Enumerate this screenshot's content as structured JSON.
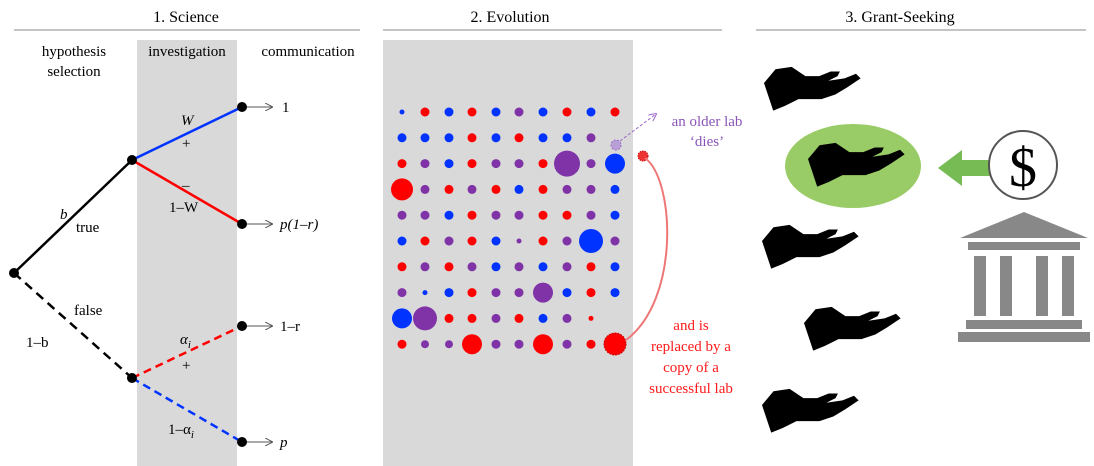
{
  "panels": [
    {
      "title": "1. Science"
    },
    {
      "title": "2. Evolution"
    },
    {
      "title": "3. Grant-Seeking"
    }
  ],
  "science": {
    "columns": {
      "selection_line1": "hypothesis",
      "selection_line2": "selection",
      "investigation": "investigation",
      "communication": "communication"
    },
    "branches": {
      "b": "b",
      "true": "true",
      "false": "false",
      "one_minus_b": "1–b",
      "W": "W",
      "plus_top": "+",
      "minus": "–",
      "one_minus_W": "1–W",
      "alpha": "α",
      "alpha_sub": "i",
      "plus_bottom": "+",
      "one_minus_alpha": "1–α",
      "one_minus_alpha_sub": "i"
    },
    "outcomes": {
      "o1": "1",
      "o2": "p(1–r)",
      "o3": "1–r",
      "o4": "p"
    }
  },
  "evolution": {
    "dies_line1": "an older lab",
    "dies_line2": "‘dies’",
    "replaced": [
      "and is",
      "replaced by a",
      "copy of a",
      "successful lab"
    ],
    "colors": {
      "red": "#ff0000",
      "blue": "#0033ff",
      "purple": "#7f33a6",
      "grey": "#d9d9d9",
      "dies": "#9966cc",
      "replace": "#ee5555"
    }
  },
  "grants": {
    "dollar": "$",
    "colors": {
      "hand": "#000000",
      "highlight": "#99cc66",
      "arrow": "#77bb55",
      "bank": "#888888"
    }
  }
}
